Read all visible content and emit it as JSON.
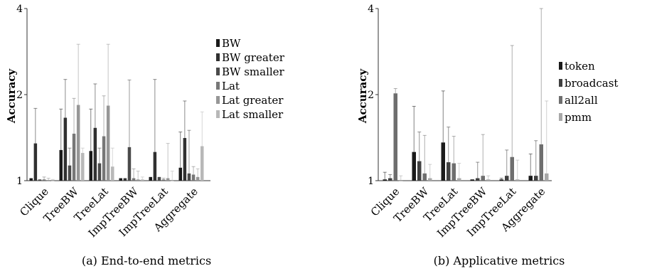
{
  "chart_data": [
    {
      "type": "bar",
      "caption": "(a) End-to-end metrics",
      "ylabel": "Accuracy",
      "yscale": "log",
      "ylim": [
        1,
        4
      ],
      "yticks": [
        1,
        2,
        4
      ],
      "categories": [
        "Clique",
        "TreeBW",
        "TreeLat",
        "ImpTreeBW",
        "ImpTreeLat",
        "Aggregate"
      ],
      "legend_position": "right",
      "series": [
        {
          "name": "BW",
          "color": "#1a1a1a",
          "values": [
            1.02,
            1.28,
            1.27,
            1.02,
            1.03,
            1.11
          ],
          "err_high": [
            1.02,
            1.78,
            1.78,
            1.02,
            1.03,
            1.48
          ]
        },
        {
          "name": "BW greater",
          "color": "#303030",
          "values": [
            1.35,
            1.66,
            1.53,
            1.02,
            1.26,
            1.41
          ],
          "err_high": [
            1.79,
            2.26,
            2.18,
            1.02,
            2.26,
            1.9
          ]
        },
        {
          "name": "BW smaller",
          "color": "#4a4a4a",
          "values": [
            1.01,
            1.13,
            1.15,
            1.31,
            1.03,
            1.06
          ],
          "err_high": [
            1.01,
            1.3,
            1.3,
            2.25,
            1.03,
            1.5
          ]
        },
        {
          "name": "Lat",
          "color": "#777777",
          "values": [
            1.01,
            1.46,
            1.43,
            1.02,
            1.01,
            1.05
          ],
          "err_high": [
            1.03,
            1.94,
            1.98,
            1.1,
            1.02,
            1.12
          ]
        },
        {
          "name": "Lat greater",
          "color": "#969696",
          "values": [
            1.0,
            1.84,
            1.83,
            1.01,
            1.02,
            1.03
          ],
          "err_high": [
            1.02,
            3.0,
            3.0,
            1.08,
            1.35,
            1.1
          ]
        },
        {
          "name": "Lat smaller",
          "color": "#b8b8b8",
          "values": [
            1.0,
            1.25,
            1.12,
            1.01,
            1.0,
            1.32
          ],
          "err_high": [
            1.01,
            1.3,
            1.3,
            1.03,
            1.08,
            1.74
          ]
        }
      ]
    },
    {
      "type": "bar",
      "caption": "(b) Applicative metrics",
      "ylabel": "Accuracy",
      "yscale": "log",
      "ylim": [
        1,
        4
      ],
      "yticks": [
        1,
        2,
        4
      ],
      "categories": [
        "Clique",
        "TreeBW",
        "TreeLat",
        "ImpTreeBW",
        "ImpTreeLat",
        "Aggregate"
      ],
      "legend_position": "right",
      "series": [
        {
          "name": "token",
          "color": "#1a1a1a",
          "values": [
            1.01,
            1.26,
            1.36,
            1.01,
            1.01,
            1.04
          ],
          "err_high": [
            1.07,
            1.82,
            2.06,
            1.01,
            1.02,
            1.24
          ]
        },
        {
          "name": "broadcast",
          "color": "#404040",
          "values": [
            1.02,
            1.17,
            1.16,
            1.02,
            1.04,
            1.04
          ],
          "err_high": [
            1.05,
            1.48,
            1.54,
            1.16,
            1.28,
            1.38
          ]
        },
        {
          "name": "all2all",
          "color": "#6e6e6e",
          "values": [
            2.02,
            1.06,
            1.15,
            1.04,
            1.21,
            1.34
          ],
          "err_high": [
            2.1,
            1.44,
            1.43,
            1.45,
            2.97,
            4.0
          ]
        },
        {
          "name": "pmm",
          "color": "#a8a8a8",
          "values": [
            1.0,
            1.02,
            1.02,
            1.01,
            1.01,
            1.06
          ],
          "err_high": [
            1.04,
            1.14,
            1.15,
            1.04,
            1.18,
            1.9
          ]
        }
      ]
    }
  ]
}
